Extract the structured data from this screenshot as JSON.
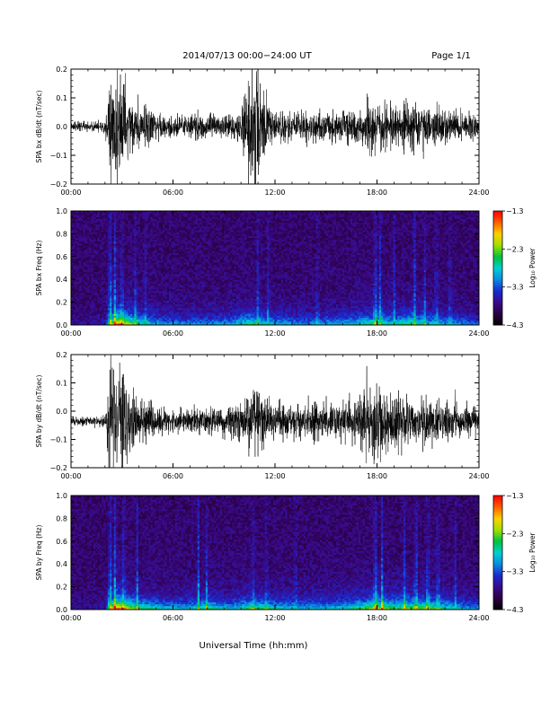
{
  "header": {
    "title": "2014/07/13  00:00−24:00 UT",
    "page": "Page 1/1"
  },
  "colors": {
    "trace": "#000000",
    "colormap": [
      "#000000",
      "#2a0040",
      "#3a0a8a",
      "#1a2ad0",
      "#0a8ae0",
      "#00d0d0",
      "#00c040",
      "#a0e000",
      "#ffd000",
      "#ff6000",
      "#ff0000"
    ]
  },
  "xlabel": "Universal Time (hh:mm)",
  "chart_data": [
    {
      "type": "line",
      "id": "bx-dbdt",
      "ylabel": "SPA bx dB/dt (nT/sec)",
      "xlim": [
        0,
        24
      ],
      "ylim": [
        -0.2,
        0.2
      ],
      "xticks": [
        "00:00",
        "06:00",
        "12:00",
        "18:00",
        "24:00"
      ],
      "yticks": [
        "0.2",
        "0.1",
        "0.0",
        "−0.1",
        "−0.2"
      ],
      "yvals": [
        0.2,
        0.1,
        0.0,
        -0.1,
        -0.2
      ],
      "baseline": 0.0,
      "envelope": {
        "x": [
          0,
          1,
          2,
          2.3,
          2.5,
          3,
          3.5,
          4,
          5,
          6,
          7,
          8,
          9,
          10,
          10.5,
          11,
          11.5,
          12,
          13,
          14,
          15,
          16,
          17,
          17.5,
          18,
          19,
          20,
          21,
          22,
          23,
          24
        ],
        "amp": [
          0.015,
          0.015,
          0.02,
          0.2,
          0.2,
          0.2,
          0.1,
          0.08,
          0.05,
          0.035,
          0.04,
          0.04,
          0.04,
          0.05,
          0.2,
          0.2,
          0.09,
          0.06,
          0.05,
          0.05,
          0.05,
          0.06,
          0.06,
          0.09,
          0.08,
          0.07,
          0.08,
          0.07,
          0.06,
          0.05,
          0.04
        ]
      }
    },
    {
      "type": "heatmap",
      "id": "bx-spectrogram",
      "ylabel": "SPA bx Freq (Hz)",
      "colorbar_label": "Log₁₀ Power",
      "xlim": [
        0,
        24
      ],
      "ylim": [
        0.0,
        1.0
      ],
      "xticks": [
        "00:00",
        "06:00",
        "12:00",
        "18:00",
        "24:00"
      ],
      "yticks": [
        "1.0",
        "0.8",
        "0.6",
        "0.4",
        "0.2",
        "0.0"
      ],
      "yvals": [
        1.0,
        0.8,
        0.6,
        0.4,
        0.2,
        0.0
      ],
      "cbar_range": [
        -4.3,
        -1.3
      ],
      "cbar_ticks": [
        "−1.3",
        "−2.3",
        "−3.3",
        "−4.3"
      ],
      "cbar_vals": [
        -1.3,
        -2.3,
        -3.3,
        -4.3
      ]
    },
    {
      "type": "line",
      "id": "by-dbdt",
      "ylabel": "SPA by dB/dt (nT/sec)",
      "xlim": [
        0,
        24
      ],
      "ylim": [
        -0.2,
        0.2
      ],
      "xticks": [
        "00:00",
        "06:00",
        "12:00",
        "18:00",
        "24:00"
      ],
      "yticks": [
        "0.2",
        "0.1",
        "0.0",
        "−0.1",
        "−0.2"
      ],
      "yvals": [
        0.2,
        0.1,
        0.0,
        -0.1,
        -0.2
      ],
      "baseline": -0.035,
      "envelope": {
        "x": [
          0,
          1,
          2,
          2.3,
          2.5,
          3,
          3.5,
          4,
          5,
          6,
          7,
          8,
          9,
          10,
          10.5,
          11,
          11.5,
          12,
          13,
          14,
          15,
          16,
          17,
          17.5,
          18,
          19,
          20,
          21,
          22,
          23,
          24
        ],
        "amp": [
          0.015,
          0.015,
          0.02,
          0.2,
          0.2,
          0.2,
          0.12,
          0.08,
          0.05,
          0.04,
          0.05,
          0.05,
          0.05,
          0.06,
          0.1,
          0.12,
          0.08,
          0.07,
          0.06,
          0.06,
          0.06,
          0.07,
          0.1,
          0.14,
          0.12,
          0.1,
          0.08,
          0.09,
          0.07,
          0.06,
          0.05
        ]
      }
    },
    {
      "type": "heatmap",
      "id": "by-spectrogram",
      "ylabel": "SPA by Freq (Hz)",
      "colorbar_label": "Log₁₀ Power",
      "xlim": [
        0,
        24
      ],
      "ylim": [
        0.0,
        1.0
      ],
      "xticks": [
        "00:00",
        "06:00",
        "12:00",
        "18:00",
        "24:00"
      ],
      "yticks": [
        "1.0",
        "0.8",
        "0.6",
        "0.4",
        "0.2",
        "0.0"
      ],
      "yvals": [
        1.0,
        0.8,
        0.6,
        0.4,
        0.2,
        0.0
      ],
      "cbar_range": [
        -4.3,
        -1.3
      ],
      "cbar_ticks": [
        "−1.3",
        "−2.3",
        "−3.3",
        "−4.3"
      ],
      "cbar_vals": [
        -1.3,
        -2.3,
        -3.3,
        -4.3
      ]
    }
  ]
}
